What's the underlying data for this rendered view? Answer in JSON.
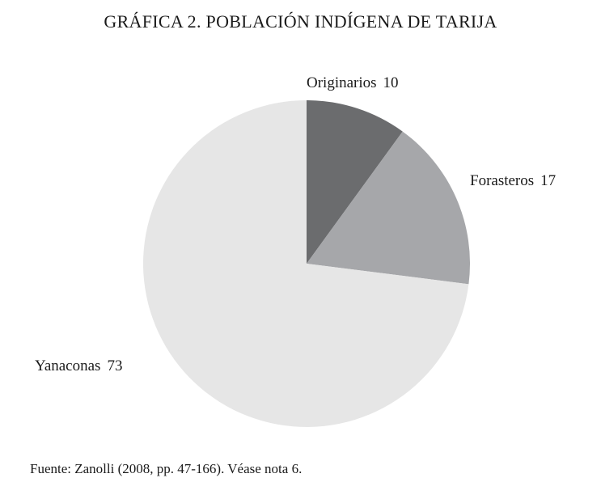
{
  "chart_data": {
    "type": "pie",
    "title": "GRÁFICA 2. POBLACIÓN INDÍGENA DE TARIJA",
    "slices": [
      {
        "label": "Originarios",
        "value": 10,
        "value_label": "10",
        "color": "#6b6c6e"
      },
      {
        "label": "Forasteros",
        "value": 17,
        "value_label": "17",
        "color": "#a6a7aa"
      },
      {
        "label": "Yanaconas",
        "value": 73,
        "value_label": "73",
        "color": "#e6e6e6"
      }
    ],
    "start_angle": "12 o'clock",
    "direction": "clockwise"
  },
  "source": "Fuente: Zanolli (2008, pp. 47-166). Véase nota 6."
}
